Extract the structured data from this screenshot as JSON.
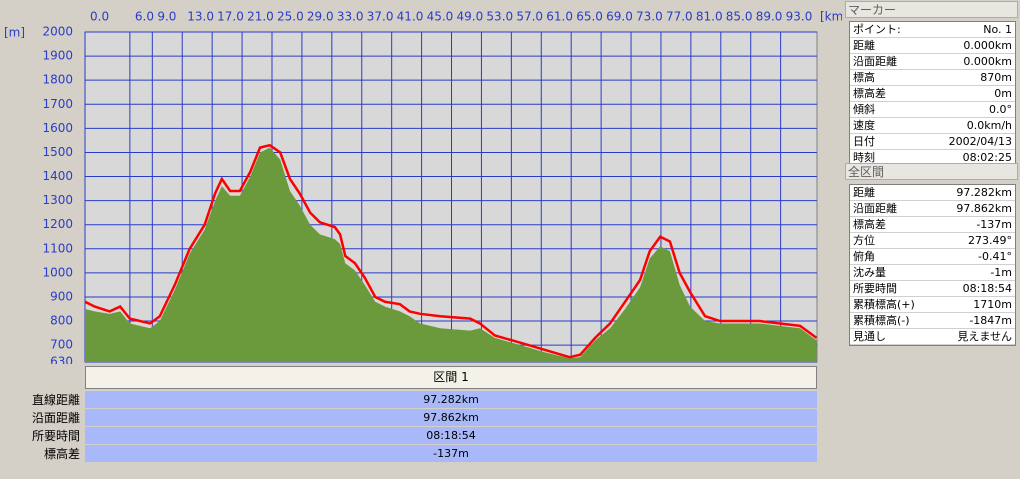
{
  "chart_data": {
    "type": "area",
    "x_label": "[km]",
    "y_label": "[m]",
    "x": [
      0,
      1.3,
      3.3,
      4.7,
      6.0,
      8.7,
      10.0,
      12.0,
      14.0,
      16.0,
      17.4,
      18.3,
      19.4,
      20.7,
      22.1,
      23.4,
      24.7,
      26.1,
      27.4,
      28.7,
      30.1,
      31.4,
      33.4,
      34.1,
      34.8,
      36.1,
      37.4,
      38.8,
      40.1,
      42.1,
      43.4,
      44.8,
      47.5,
      51.5,
      52.8,
      54.8,
      58.2,
      61.5,
      64.8,
      66.2,
      68.2,
      70.2,
      72.2,
      74.2,
      75.5,
      76.9,
      78.2,
      79.5,
      80.9,
      82.9,
      84.9,
      87.6,
      90.2,
      92.9,
      95.6,
      97.8
    ],
    "series": [
      {
        "kind": "area",
        "color": "#6b9a3c",
        "values": [
          850,
          840,
          830,
          840,
          790,
          770,
          800,
          930,
          1080,
          1180,
          1300,
          1360,
          1320,
          1320,
          1400,
          1500,
          1520,
          1470,
          1340,
          1280,
          1200,
          1160,
          1140,
          1120,
          1040,
          1010,
          950,
          880,
          860,
          840,
          820,
          790,
          770,
          760,
          770,
          730,
          700,
          670,
          645,
          650,
          720,
          770,
          850,
          940,
          1060,
          1110,
          1090,
          950,
          860,
          800,
          790,
          790,
          790,
          780,
          770,
          720
        ]
      },
      {
        "kind": "line",
        "color": "#ff0000",
        "values": [
          880,
          860,
          840,
          860,
          810,
          790,
          820,
          950,
          1100,
          1200,
          1330,
          1390,
          1340,
          1340,
          1420,
          1520,
          1530,
          1500,
          1390,
          1330,
          1250,
          1210,
          1190,
          1160,
          1070,
          1040,
          980,
          900,
          880,
          870,
          840,
          830,
          820,
          810,
          790,
          740,
          710,
          680,
          650,
          660,
          730,
          790,
          880,
          970,
          1090,
          1150,
          1130,
          1000,
          920,
          820,
          800,
          800,
          800,
          790,
          780,
          730
        ]
      }
    ],
    "xlim": [
      0,
      97.862
    ],
    "ylim": [
      630,
      2000
    ],
    "xticks": [
      {
        "value": 0,
        "label": "0.0"
      },
      {
        "value": 6,
        "label": "6.0"
      },
      {
        "value": 9,
        "label": "9.0"
      },
      {
        "value": 13,
        "label": "13.0"
      },
      {
        "value": 17,
        "label": "17.0"
      },
      {
        "value": 21,
        "label": "21.0"
      },
      {
        "value": 25,
        "label": "25.0"
      },
      {
        "value": 29,
        "label": "29.0"
      },
      {
        "value": 33,
        "label": "33.0"
      },
      {
        "value": 37,
        "label": "37.0"
      },
      {
        "value": 41,
        "label": "41.0"
      },
      {
        "value": 45,
        "label": "45.0"
      },
      {
        "value": 49,
        "label": "49.0"
      },
      {
        "value": 53,
        "label": "53.0"
      },
      {
        "value": 57,
        "label": "57.0"
      },
      {
        "value": 61,
        "label": "61.0"
      },
      {
        "value": 65,
        "label": "65.0"
      },
      {
        "value": 69,
        "label": "69.0"
      },
      {
        "value": 73,
        "label": "73.0"
      },
      {
        "value": 77,
        "label": "77.0"
      },
      {
        "value": 81,
        "label": "81.0"
      },
      {
        "value": 85,
        "label": "85.0"
      },
      {
        "value": 89,
        "label": "89.0"
      },
      {
        "value": 93,
        "label": "93.0"
      }
    ],
    "yticks": [
      630,
      700,
      800,
      900,
      1000,
      1100,
      1200,
      1300,
      1400,
      1500,
      1600,
      1700,
      1800,
      1900,
      2000
    ],
    "grid": true,
    "grid_color": "#2a3cc8",
    "background": "#d8d8d8"
  },
  "segment_table": {
    "header": "区間 1",
    "rows": [
      [
        "直線距離",
        "97.282km"
      ],
      [
        "沿面距離",
        "97.862km"
      ],
      [
        "所要時間",
        "08:18:54"
      ],
      [
        "標高差",
        "-137m"
      ]
    ]
  },
  "marker_panel": {
    "title": "マーカー",
    "rows": [
      [
        "ポイント:",
        "No. 1"
      ],
      [
        "距離",
        "0.000km"
      ],
      [
        "沿面距離",
        "0.000km"
      ],
      [
        "標高",
        "870m"
      ],
      [
        "標高差",
        "0m"
      ],
      [
        "傾斜",
        "0.0°"
      ],
      [
        "速度",
        "0.0km/h"
      ],
      [
        "日付",
        "2002/04/13"
      ],
      [
        "時刻",
        "08:02:25"
      ]
    ]
  },
  "total_panel": {
    "title": "全区間",
    "rows": [
      [
        "距離",
        "97.282km"
      ],
      [
        "沿面距離",
        "97.862km"
      ],
      [
        "標高差",
        "-137m"
      ],
      [
        "方位",
        "273.49°"
      ],
      [
        "俯角",
        "-0.41°"
      ],
      [
        "沈み量",
        "-1m"
      ],
      [
        "所要時間",
        "08:18:54"
      ],
      [
        "累積標高(+)",
        "1710m"
      ],
      [
        "累積標高(-)",
        "-1847m"
      ],
      [
        "見通し",
        "見えません"
      ]
    ]
  }
}
